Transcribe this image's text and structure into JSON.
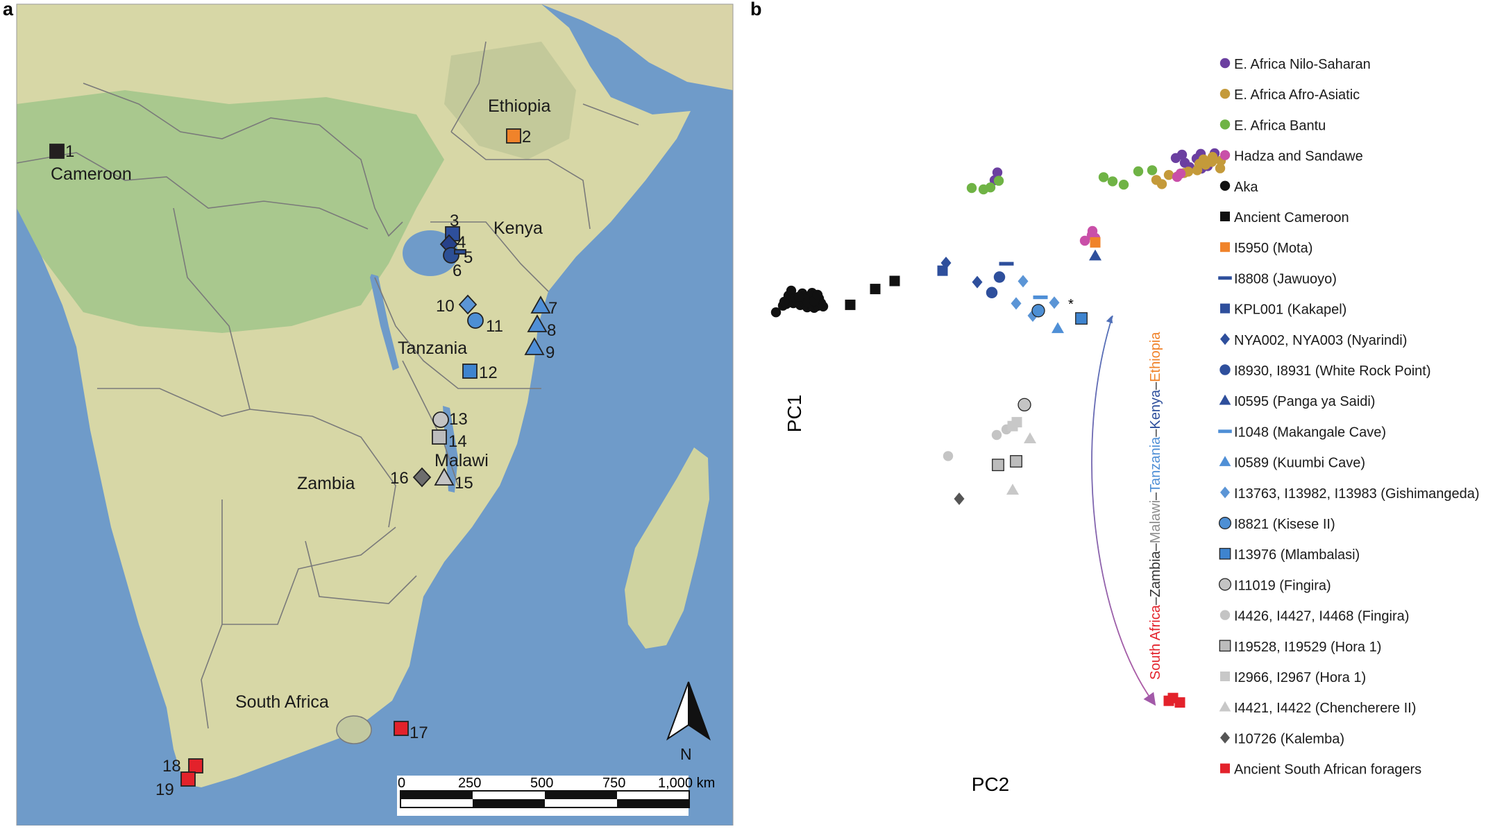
{
  "panel_a": {
    "label": "a",
    "countries": [
      "Ethiopia",
      "Cameroon",
      "Kenya",
      "Tanzania",
      "Malawi",
      "Zambia",
      "South Africa"
    ],
    "sites": [
      {
        "num": "1",
        "shape": "square",
        "color": "#231f20"
      },
      {
        "num": "2",
        "shape": "square",
        "color": "#f0832a"
      },
      {
        "num": "3",
        "shape": "square",
        "color": "#2e4f9c"
      },
      {
        "num": "4",
        "shape": "diamond",
        "color": "#27418a"
      },
      {
        "num": "5",
        "shape": "circle",
        "color": "#2c4f95"
      },
      {
        "num": "6",
        "shape": "dash",
        "color": "#2c4f95"
      },
      {
        "num": "7",
        "shape": "triangle",
        "color": "#4f8fd6"
      },
      {
        "num": "8",
        "shape": "triangle",
        "color": "#4f8fd6"
      },
      {
        "num": "9",
        "shape": "triangle",
        "color": "#4f8fd6"
      },
      {
        "num": "10",
        "shape": "diamond",
        "color": "#5b95d6"
      },
      {
        "num": "11",
        "shape": "circle",
        "color": "#4d8fd4"
      },
      {
        "num": "12",
        "shape": "square",
        "color": "#3e84cf"
      },
      {
        "num": "13",
        "shape": "circle",
        "color": "#c4c4c4"
      },
      {
        "num": "14",
        "shape": "square",
        "color": "#bcbcbc"
      },
      {
        "num": "15",
        "shape": "triangle",
        "color": "#c4c4c4"
      },
      {
        "num": "16",
        "shape": "diamond",
        "color": "#6d6d6d"
      },
      {
        "num": "17",
        "shape": "square",
        "color": "#e3222b"
      },
      {
        "num": "18",
        "shape": "square",
        "color": "#e3222b"
      },
      {
        "num": "19",
        "shape": "square",
        "color": "#e3222b"
      }
    ],
    "compass": "N",
    "scale_labels": [
      "0",
      "250",
      "500",
      "750",
      "1,000 km"
    ],
    "colors": {
      "ocean": "#6f9bc9",
      "land": "#d7d7a6",
      "green": "#a9c88e",
      "border": "#6e6e6e"
    }
  },
  "chart_data": {
    "type": "scatter",
    "panel_label": "b",
    "xlabel": "PC2",
    "ylabel": "PC1",
    "axes_visible": false,
    "grid": false,
    "legend_position": "right",
    "annotation_star": "*",
    "gradient_label": [
      {
        "text": "South Africa",
        "color": "#e3222b"
      },
      {
        "text": "–",
        "color": "#333333"
      },
      {
        "text": "Zambia",
        "color": "#333333"
      },
      {
        "text": "–",
        "color": "#333333"
      },
      {
        "text": "Malawi",
        "color": "#8c8c8c"
      },
      {
        "text": "–",
        "color": "#333333"
      },
      {
        "text": "Tanzania",
        "color": "#4f8fd6"
      },
      {
        "text": "–",
        "color": "#333333"
      },
      {
        "text": "Kenya",
        "color": "#2e4f9c"
      },
      {
        "text": "–",
        "color": "#333333"
      },
      {
        "text": "Ethiopia",
        "color": "#f0832a"
      }
    ],
    "series": [
      {
        "name": "E. Africa Nilo-Saharan",
        "shape": "dot",
        "color": "#6b3fa0",
        "points": [
          [
            0.585,
            0.93
          ],
          [
            0.589,
            0.901
          ],
          [
            0.576,
            0.918
          ],
          [
            0.606,
            0.916
          ],
          [
            0.613,
            0.88
          ],
          [
            0.612,
            0.933
          ],
          [
            0.622,
            0.889
          ],
          [
            0.596,
            0.885
          ],
          [
            0.625,
            0.904
          ],
          [
            0.632,
            0.935
          ],
          [
            0.583,
            0.862
          ],
          [
            0.315,
            0.838
          ],
          [
            0.319,
            0.866
          ]
        ]
      },
      {
        "name": "E. Africa Afro-Asiatic",
        "shape": "dot",
        "color": "#c49a3a",
        "points": [
          [
            0.556,
            0.824
          ],
          [
            0.548,
            0.839
          ],
          [
            0.566,
            0.857
          ],
          [
            0.578,
            0.851
          ],
          [
            0.607,
            0.874
          ],
          [
            0.619,
            0.894
          ],
          [
            0.628,
            0.904
          ],
          [
            0.629,
            0.922
          ],
          [
            0.618,
            0.905
          ],
          [
            0.64,
            0.881
          ],
          [
            0.641,
            0.908
          ],
          [
            0.616,
            0.913
          ],
          [
            0.594,
            0.869
          ],
          [
            0.588,
            0.864
          ],
          [
            0.61,
            0.897
          ]
        ]
      },
      {
        "name": "E. Africa Bantu",
        "shape": "dot",
        "color": "#6fb345",
        "points": [
          [
            0.282,
            0.81
          ],
          [
            0.299,
            0.805
          ],
          [
            0.309,
            0.812
          ],
          [
            0.321,
            0.836
          ],
          [
            0.472,
            0.849
          ],
          [
            0.485,
            0.834
          ],
          [
            0.501,
            0.822
          ],
          [
            0.522,
            0.87
          ],
          [
            0.542,
            0.874
          ]
        ]
      },
      {
        "name": "Hadza and Sandawe",
        "shape": "dot",
        "color": "#c94fa8",
        "points": [
          [
            0.445,
            0.62
          ],
          [
            0.455,
            0.64
          ],
          [
            0.456,
            0.655
          ],
          [
            0.46,
            0.63
          ],
          [
            0.578,
            0.85
          ],
          [
            0.583,
            0.862
          ]
        ]
      },
      {
        "name": "Aka",
        "shape": "dot",
        "color": "#111111",
        "points": [
          [
            0.0,
            0.362
          ],
          [
            0.01,
            0.386
          ],
          [
            0.015,
            0.392
          ],
          [
            0.02,
            0.41
          ],
          [
            0.025,
            0.395
          ],
          [
            0.03,
            0.405
          ],
          [
            0.035,
            0.388
          ],
          [
            0.04,
            0.4
          ],
          [
            0.045,
            0.38
          ],
          [
            0.05,
            0.39
          ],
          [
            0.055,
            0.378
          ],
          [
            0.06,
            0.385
          ],
          [
            0.018,
            0.422
          ],
          [
            0.022,
            0.44
          ],
          [
            0.028,
            0.415
          ],
          [
            0.038,
            0.43
          ],
          [
            0.048,
            0.42
          ],
          [
            0.052,
            0.432
          ],
          [
            0.058,
            0.405
          ],
          [
            0.062,
            0.412
          ],
          [
            0.065,
            0.395
          ],
          [
            0.068,
            0.383
          ],
          [
            0.042,
            0.41
          ],
          [
            0.033,
            0.418
          ],
          [
            0.012,
            0.4
          ],
          [
            0.046,
            0.397
          ],
          [
            0.055,
            0.402
          ],
          [
            0.06,
            0.425
          ]
        ]
      },
      {
        "name": "Ancient Cameroon",
        "shape": "square",
        "color": "#111111",
        "points": [
          [
            0.107,
            0.389
          ],
          [
            0.143,
            0.446
          ],
          [
            0.171,
            0.475
          ]
        ]
      },
      {
        "name": "I5950 (Mota)",
        "shape": "square",
        "color": "#f0832a",
        "points": [
          [
            0.46,
            0.614
          ]
        ]
      },
      {
        "name": "I8808 (Jawuoyo)",
        "shape": "dash",
        "color": "#2e4f9c",
        "points": [
          [
            0.332,
            0.538
          ]
        ]
      },
      {
        "name": "KPL001 (Kakapel)",
        "shape": "square",
        "color": "#2e4f9c",
        "points": [
          [
            0.24,
            0.512
          ]
        ]
      },
      {
        "name": "NYA002, NYA003 (Nyarindi)",
        "shape": "diamond",
        "color": "#2e4f9c",
        "points": [
          [
            0.245,
            0.54
          ],
          [
            0.29,
            0.471
          ]
        ]
      },
      {
        "name": "I8930, I8931 (White Rock Point)",
        "shape": "circle",
        "color": "#2e4f9c",
        "points": [
          [
            0.322,
            0.489
          ],
          [
            0.311,
            0.433
          ]
        ]
      },
      {
        "name": "I0595 (Panga ya Saidi)",
        "shape": "triangle",
        "color": "#2e4f9c",
        "points": [
          [
            0.46,
            0.566
          ]
        ]
      },
      {
        "name": "I1048 (Makangale Cave)",
        "shape": "dash",
        "color": "#4f8fd6",
        "points": [
          [
            0.381,
            0.417
          ]
        ]
      },
      {
        "name": "I0589 (Kuumbi Cave)",
        "shape": "triangle",
        "color": "#4f8fd6",
        "points": [
          [
            0.406,
            0.304
          ]
        ]
      },
      {
        "name": "I13763, I13982, I13983 (Gishimangeda)",
        "shape": "diamond",
        "color": "#5b95d6",
        "points": [
          [
            0.356,
            0.474
          ],
          [
            0.346,
            0.394
          ],
          [
            0.401,
            0.397
          ],
          [
            0.37,
            0.35
          ]
        ]
      },
      {
        "name": "I8821 (Kisese II)",
        "shape": "circle-outlined",
        "color": "#4d8fd4",
        "points": [
          [
            0.378,
            0.368
          ]
        ]
      },
      {
        "name": "I13976 (Mlambalasi)",
        "shape": "square-outlined",
        "color": "#3e84cf",
        "points": [
          [
            0.44,
            0.34
          ]
        ]
      },
      {
        "name": "I11019 (Fingira)",
        "shape": "circle-outlined",
        "color": "#c4c4c4",
        "points": [
          [
            0.358,
            0.029
          ]
        ]
      },
      {
        "name": "I4426, I4427, I4468 (Fingira)",
        "shape": "dot",
        "color": "#c4c4c4",
        "points": [
          [
            0.248,
            -0.156
          ],
          [
            0.318,
            -0.08
          ],
          [
            0.332,
            -0.06
          ]
        ]
      },
      {
        "name": "I19528, I19529 (Hora 1)",
        "shape": "square-outlined",
        "color": "#bcbcbc",
        "points": [
          [
            0.32,
            -0.188
          ],
          [
            0.346,
            -0.175
          ]
        ]
      },
      {
        "name": "I2966, I2967 (Hora 1)",
        "shape": "square",
        "color": "#c8c8c8",
        "points": [
          [
            0.341,
            -0.048
          ],
          [
            0.347,
            -0.034
          ]
        ]
      },
      {
        "name": "I4421, I4422 (Chencherere II)",
        "shape": "triangle",
        "color": "#c8c8c8",
        "points": [
          [
            0.366,
            -0.093
          ],
          [
            0.341,
            -0.278
          ]
        ]
      },
      {
        "name": "I10726 (Kalemba)",
        "shape": "diamond",
        "color": "#555555",
        "points": [
          [
            0.264,
            -0.31
          ]
        ]
      },
      {
        "name": "Ancient South African foragers",
        "shape": "square",
        "color": "#e3222b",
        "points": [
          [
            0.566,
            -1.038
          ],
          [
            0.572,
            -1.028
          ],
          [
            0.582,
            -1.044
          ]
        ]
      }
    ]
  }
}
